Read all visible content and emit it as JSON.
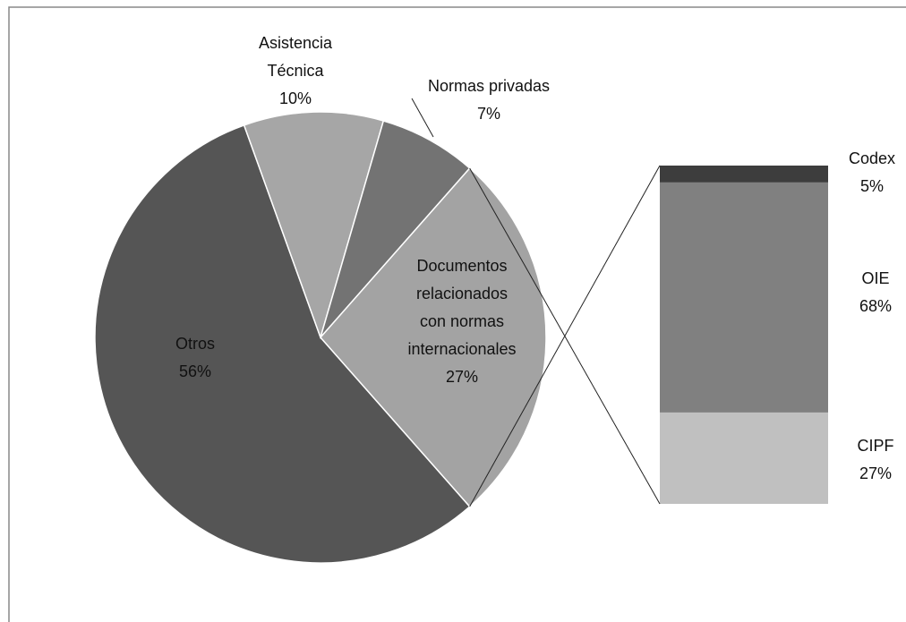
{
  "chart_data": [
    {
      "type": "pie",
      "categories": [
        "Otros",
        "Asistencia Técnica",
        "Normas privadas",
        "Documentos relacionados con normas internacionales"
      ],
      "values": [
        56,
        10,
        7,
        27
      ],
      "value_labels": [
        "56%",
        "10%",
        "7%",
        "27%"
      ],
      "colors": [
        "#555555",
        "#a6a6a6",
        "#737373",
        "#a3a3a3"
      ]
    },
    {
      "type": "stacked_bar",
      "categories": [
        "Codex",
        "OIE",
        "CIPF"
      ],
      "values": [
        5,
        68,
        27
      ],
      "value_labels": [
        "5%",
        "68%",
        "27%"
      ],
      "colors": [
        "#3d3d3d",
        "#808080",
        "#c0c0c0"
      ]
    }
  ]
}
